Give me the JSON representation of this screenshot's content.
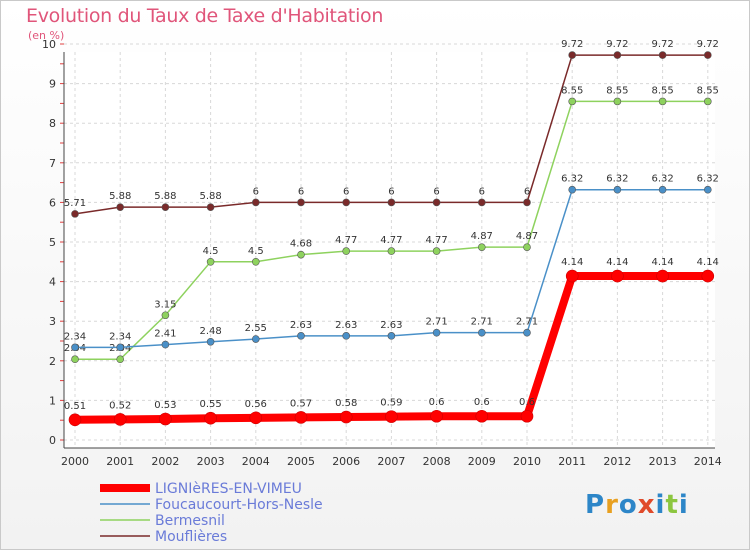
{
  "chart_data": {
    "type": "line",
    "title": "Evolution du Taux de Taxe d'Habitation",
    "subtitle": "(en %)",
    "categories": [
      "2000",
      "2001",
      "2002",
      "2003",
      "2004",
      "2005",
      "2006",
      "2007",
      "2008",
      "2009",
      "2010",
      "2011",
      "2012",
      "2013",
      "2014"
    ],
    "ylim": [
      0,
      10
    ],
    "yticks": [
      "0",
      "1",
      "2",
      "3",
      "4",
      "5",
      "6",
      "7",
      "8",
      "9",
      "10"
    ],
    "grid": true,
    "legend_position": "bottom-left",
    "series": [
      {
        "name": "LIGNIèRES-EN-VIMEU",
        "color": "#ff0000",
        "values": [
          0.51,
          0.52,
          0.53,
          0.55,
          0.56,
          0.57,
          0.58,
          0.59,
          0.6,
          0.6,
          0.6,
          4.14,
          4.14,
          4.14,
          4.14
        ],
        "labels": [
          "0.51",
          "0.52",
          "0.53",
          "0.55",
          "0.56",
          "0.57",
          "0.58",
          "0.59",
          "0.6",
          "0.6",
          "0.6",
          "4.14",
          "4.14",
          "4.14",
          "4.14"
        ]
      },
      {
        "name": "Foucaucourt-Hors-Nesle",
        "color": "#4a90c8",
        "values": [
          2.34,
          2.34,
          2.41,
          2.48,
          2.55,
          2.63,
          2.63,
          2.63,
          2.71,
          2.71,
          2.71,
          6.32,
          6.32,
          6.32,
          6.32
        ],
        "labels": [
          "2.34",
          "2.34",
          "2.41",
          "2.48",
          "2.55",
          "2.63",
          "2.63",
          "2.63",
          "2.71",
          "2.71",
          "2.71",
          "6.32",
          "6.32",
          "6.32",
          "6.32"
        ]
      },
      {
        "name": "Bermesnil",
        "color": "#8ed25e",
        "values": [
          2.04,
          2.04,
          3.15,
          4.5,
          4.5,
          4.68,
          4.77,
          4.77,
          4.77,
          4.87,
          4.87,
          8.55,
          8.55,
          8.55,
          8.55
        ],
        "labels": [
          "2.04",
          "2.04",
          "3.15",
          "4.5",
          "4.5",
          "4.68",
          "4.77",
          "4.77",
          "4.77",
          "4.87",
          "4.87",
          "8.55",
          "8.55",
          "8.55",
          "8.55"
        ]
      },
      {
        "name": "Mouflières",
        "color": "#7a2a2a",
        "values": [
          5.71,
          5.88,
          5.88,
          5.88,
          6,
          6,
          6,
          6,
          6,
          6,
          6,
          9.72,
          9.72,
          9.72,
          9.72
        ],
        "labels": [
          "5.71",
          "5.88",
          "5.88",
          "5.88",
          "6",
          "6",
          "6",
          "6",
          "6",
          "6",
          "6",
          "9.72",
          "9.72",
          "9.72",
          "9.72"
        ]
      }
    ]
  },
  "logo": {
    "text": "Proxiti",
    "letters": [
      "P",
      "r",
      "o",
      "x",
      "i",
      "t",
      "i"
    ],
    "colors": [
      "#2d86c8",
      "#e8a020",
      "#2d86c8",
      "#e04a2a",
      "#2d86c8",
      "#8cc63f",
      "#2d86c8"
    ]
  }
}
